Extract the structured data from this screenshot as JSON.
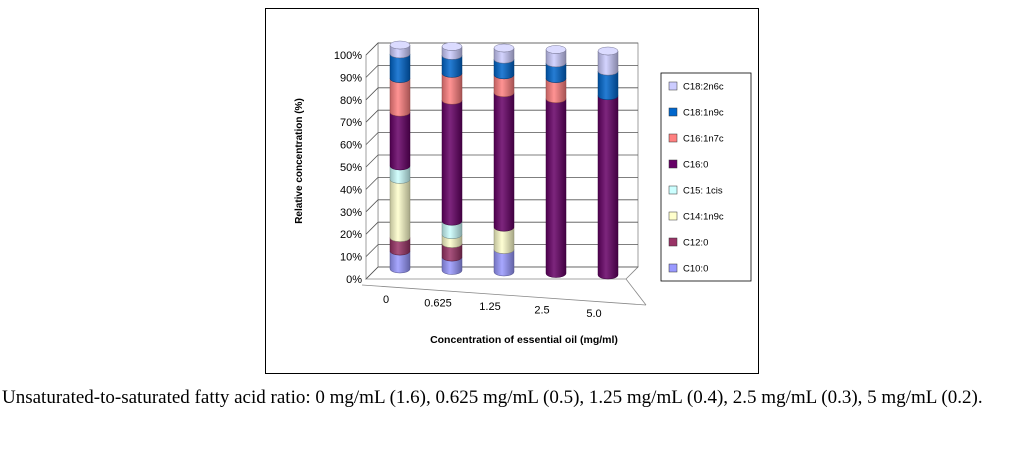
{
  "chart_data": {
    "type": "bar",
    "subtype": "stacked-100-cylinder-3d",
    "xlabel": "Concentration of essential oil  (mg/ml)",
    "ylabel": "Relative concentration (%)",
    "categories": [
      "0",
      "0.625",
      "1.25",
      "2.5",
      "5.0"
    ],
    "ylim": [
      0,
      100
    ],
    "y_ticks": [
      "0%",
      "10%",
      "20%",
      "30%",
      "40%",
      "50%",
      "60%",
      "70%",
      "80%",
      "90%",
      "100%"
    ],
    "grid": true,
    "legend_position": "right",
    "series": [
      {
        "name": "C10:0",
        "color": "#9999ff",
        "values": [
          8,
          6,
          10,
          0,
          0
        ]
      },
      {
        "name": "C12:0",
        "color": "#993366",
        "values": [
          6,
          6,
          0,
          0,
          0
        ]
      },
      {
        "name": "C14:1n9c",
        "color": "#ffffcc",
        "values": [
          26,
          4,
          10,
          0,
          0
        ]
      },
      {
        "name": "C15: 1cis",
        "color": "#ccffff",
        "values": [
          6,
          6,
          0,
          0,
          0
        ]
      },
      {
        "name": "C16:0",
        "color": "#660066",
        "values": [
          24,
          54,
          60,
          78,
          80
        ]
      },
      {
        "name": "C16:1n7c",
        "color": "#ff8080",
        "values": [
          15,
          12,
          8,
          9,
          0
        ]
      },
      {
        "name": "C18:1n9c",
        "color": "#0066cc",
        "values": [
          11,
          8,
          7,
          7,
          11
        ]
      },
      {
        "name": "C18:2n6c",
        "color": "#ccccff",
        "values": [
          4,
          4,
          5,
          6,
          9
        ]
      }
    ]
  },
  "caption": "Unsaturated-to-saturated fatty acid ratio: 0 mg/mL (1.6), 0.625 mg/mL (0.5), 1.25 mg/mL (0.4), 2.5 mg/mL (0.3), 5 mg/mL (0.2)."
}
